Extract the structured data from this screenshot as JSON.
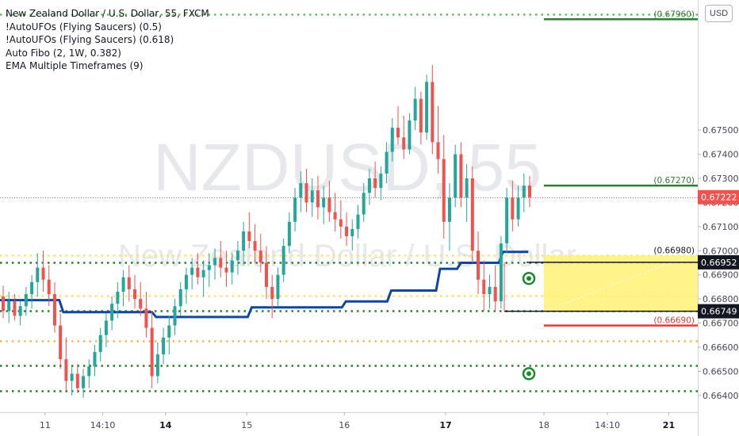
{
  "chart_data": {
    "type": "candlestick",
    "symbol_title": "New Zealand Dollar / U.S. Dollar, 55, FXCM",
    "indicators": [
      "!AutoUFOs (Flying Saucers) (0.5)",
      "!AutoUFOs (Flying Saucers) (0.618)",
      "Auto Fibo (2, 1W, 0.382)",
      "EMA Multiple Timeframes (9)"
    ],
    "watermark_symbol": "NZDUSD, 55",
    "watermark_name": "New Zealand Dollar / U.S. Dollar",
    "currency": "USD",
    "y_axis": {
      "min": 0.6635,
      "max": 0.6802,
      "ticks": [
        "0.67500",
        "0.67400",
        "0.67300",
        "0.67200",
        "0.67100",
        "0.67000",
        "0.66900",
        "0.66800",
        "0.66700",
        "0.66600",
        "0.66500",
        "0.66400"
      ]
    },
    "x_axis": {
      "ticks": [
        {
          "label": "11",
          "bold": false,
          "x": 0.061
        },
        {
          "label": "14:10",
          "bold": false,
          "x": 0.139
        },
        {
          "label": "14",
          "bold": true,
          "x": 0.224
        },
        {
          "label": "15",
          "bold": false,
          "x": 0.334
        },
        {
          "label": "16",
          "bold": false,
          "x": 0.466
        },
        {
          "label": "17",
          "bold": true,
          "x": 0.603
        },
        {
          "label": "18",
          "bold": false,
          "x": 0.736
        },
        {
          "label": "14:10",
          "bold": false,
          "x": 0.822
        },
        {
          "label": "21",
          "bold": true,
          "x": 0.905
        }
      ]
    },
    "price_labels": [
      {
        "value": "0.67960",
        "price": 0.6796,
        "style": "green-text"
      },
      {
        "value": "0.67270",
        "price": 0.6727,
        "style": "green-text"
      },
      {
        "value": "0.67222",
        "price": 0.67222,
        "style": "red-badge"
      },
      {
        "value": "0.66980",
        "price": 0.6698,
        "style": "black-text"
      },
      {
        "value": "0.66952",
        "price": 0.66952,
        "style": "black-badge"
      },
      {
        "value": "0.66749",
        "price": 0.66749,
        "style": "black-badge"
      },
      {
        "value": "0.66690",
        "price": 0.6669,
        "style": "red-text"
      }
    ],
    "horizontal_levels": [
      {
        "price": 0.6798,
        "color": "#66bb6a",
        "style": "dotted"
      },
      {
        "price": 0.6698,
        "color": "#ffe066",
        "style": "dotted"
      },
      {
        "price": 0.66815,
        "color": "#ffe066",
        "style": "dotted"
      },
      {
        "price": 0.6695,
        "color": "#2e7d32",
        "style": "dotted"
      },
      {
        "price": 0.6675,
        "color": "#2e7d32",
        "style": "dotted"
      },
      {
        "price": 0.66525,
        "color": "#2e7d32",
        "style": "dotted"
      },
      {
        "price": 0.6642,
        "color": "#2e7d32",
        "style": "dotted"
      },
      {
        "price": 0.66625,
        "color": "#ffb74d",
        "style": "dotted"
      },
      {
        "price": 0.67222,
        "color": "#ef5350",
        "style": "dotted-thin"
      }
    ],
    "target_lines": [
      {
        "price": 0.6796,
        "color": "#2e7d32"
      },
      {
        "price": 0.6727,
        "color": "#2e7d32"
      },
      {
        "price": 0.6669,
        "color": "#e53935"
      }
    ],
    "ufo_zone": {
      "top": 0.6698,
      "bottom": 0.66749,
      "color": "#fff176"
    },
    "ema_steps": [
      {
        "from": 0.0,
        "price": 0.66795
      },
      {
        "from": 0.085,
        "price": 0.66745
      },
      {
        "from": 0.218,
        "price": 0.66725
      },
      {
        "from": 0.355,
        "price": 0.66765
      },
      {
        "from": 0.49,
        "price": 0.6679
      },
      {
        "from": 0.555,
        "price": 0.66835
      },
      {
        "from": 0.625,
        "price": 0.66925
      },
      {
        "from": 0.655,
        "price": 0.6695
      },
      {
        "from": 0.715,
        "price": 0.66995
      }
    ],
    "candles": [
      [
        0.6681,
        0.66855,
        0.6672,
        0.6675
      ],
      [
        0.6675,
        0.6683,
        0.667,
        0.6679
      ],
      [
        0.6679,
        0.6682,
        0.6671,
        0.6673
      ],
      [
        0.6673,
        0.6679,
        0.6669,
        0.6677
      ],
      [
        0.6677,
        0.6685,
        0.6673,
        0.6682
      ],
      [
        0.6682,
        0.669,
        0.6676,
        0.6687
      ],
      [
        0.6687,
        0.6699,
        0.6681,
        0.6693
      ],
      [
        0.6693,
        0.67,
        0.6683,
        0.6688
      ],
      [
        0.6688,
        0.6694,
        0.6677,
        0.6682
      ],
      [
        0.6682,
        0.6687,
        0.6666,
        0.6669
      ],
      [
        0.6669,
        0.6674,
        0.6651,
        0.6655
      ],
      [
        0.6655,
        0.6664,
        0.6642,
        0.6646
      ],
      [
        0.6646,
        0.6652,
        0.664,
        0.6649
      ],
      [
        0.6649,
        0.6653,
        0.6641,
        0.6643
      ],
      [
        0.6643,
        0.6651,
        0.6639,
        0.6648
      ],
      [
        0.6648,
        0.6655,
        0.6643,
        0.6652
      ],
      [
        0.6652,
        0.6661,
        0.6648,
        0.6658
      ],
      [
        0.6658,
        0.6668,
        0.6654,
        0.6665
      ],
      [
        0.6665,
        0.6674,
        0.666,
        0.6671
      ],
      [
        0.6671,
        0.6681,
        0.6667,
        0.6678
      ],
      [
        0.6678,
        0.6687,
        0.6672,
        0.6683
      ],
      [
        0.6683,
        0.6692,
        0.6677,
        0.6689
      ],
      [
        0.6689,
        0.6694,
        0.6679,
        0.6684
      ],
      [
        0.6684,
        0.669,
        0.6676,
        0.668
      ],
      [
        0.668,
        0.6687,
        0.6673,
        0.6676
      ],
      [
        0.6676,
        0.6683,
        0.6664,
        0.6668
      ],
      [
        0.6668,
        0.6675,
        0.6643,
        0.6648
      ],
      [
        0.6648,
        0.6662,
        0.6645,
        0.6657
      ],
      [
        0.6657,
        0.6668,
        0.6653,
        0.6664
      ],
      [
        0.6664,
        0.6673,
        0.6657,
        0.6669
      ],
      [
        0.6669,
        0.668,
        0.6665,
        0.6677
      ],
      [
        0.6677,
        0.6687,
        0.6673,
        0.6684
      ],
      [
        0.6684,
        0.6693,
        0.6678,
        0.669
      ],
      [
        0.669,
        0.6697,
        0.6684,
        0.6693
      ],
      [
        0.6693,
        0.6699,
        0.6686,
        0.6689
      ],
      [
        0.6689,
        0.6696,
        0.6681,
        0.6692
      ],
      [
        0.6692,
        0.6699,
        0.6685,
        0.6694
      ],
      [
        0.6694,
        0.6701,
        0.6688,
        0.6697
      ],
      [
        0.6697,
        0.6704,
        0.6689,
        0.6693
      ],
      [
        0.6693,
        0.67,
        0.6685,
        0.6691
      ],
      [
        0.6691,
        0.6699,
        0.6686,
        0.6696
      ],
      [
        0.6696,
        0.6704,
        0.669,
        0.67
      ],
      [
        0.67,
        0.6712,
        0.6694,
        0.6708
      ],
      [
        0.6708,
        0.6716,
        0.6701,
        0.6704
      ],
      [
        0.6704,
        0.6711,
        0.6695,
        0.67
      ],
      [
        0.67,
        0.6707,
        0.6691,
        0.6695
      ],
      [
        0.6695,
        0.6702,
        0.668,
        0.6685
      ],
      [
        0.6685,
        0.669,
        0.6672,
        0.668
      ],
      [
        0.668,
        0.6693,
        0.6677,
        0.669
      ],
      [
        0.669,
        0.6705,
        0.6687,
        0.6702
      ],
      [
        0.6702,
        0.6716,
        0.6699,
        0.6712
      ],
      [
        0.6712,
        0.6726,
        0.6708,
        0.6722
      ],
      [
        0.6722,
        0.6733,
        0.6716,
        0.6728
      ],
      [
        0.6728,
        0.6734,
        0.6716,
        0.672
      ],
      [
        0.672,
        0.673,
        0.6714,
        0.6725
      ],
      [
        0.6725,
        0.6731,
        0.6713,
        0.6718
      ],
      [
        0.6718,
        0.6727,
        0.6711,
        0.6722
      ],
      [
        0.6722,
        0.6729,
        0.6712,
        0.6716
      ],
      [
        0.6716,
        0.6724,
        0.6708,
        0.6713
      ],
      [
        0.6713,
        0.6721,
        0.6705,
        0.671
      ],
      [
        0.671,
        0.6716,
        0.6702,
        0.6706
      ],
      [
        0.6706,
        0.6713,
        0.67,
        0.6709
      ],
      [
        0.6709,
        0.6719,
        0.6705,
        0.6715
      ],
      [
        0.6715,
        0.6728,
        0.6712,
        0.6724
      ],
      [
        0.6724,
        0.6734,
        0.6719,
        0.673
      ],
      [
        0.673,
        0.6737,
        0.6722,
        0.6726
      ],
      [
        0.6726,
        0.6735,
        0.6721,
        0.6732
      ],
      [
        0.6732,
        0.6745,
        0.6728,
        0.6741
      ],
      [
        0.6741,
        0.6755,
        0.6737,
        0.6751
      ],
      [
        0.6751,
        0.676,
        0.6744,
        0.6747
      ],
      [
        0.6747,
        0.6756,
        0.6738,
        0.6742
      ],
      [
        0.6742,
        0.6757,
        0.674,
        0.6754
      ],
      [
        0.6754,
        0.6768,
        0.675,
        0.6763
      ],
      [
        0.6763,
        0.6766,
        0.6744,
        0.6749
      ],
      [
        0.6749,
        0.6773,
        0.6746,
        0.677
      ],
      [
        0.677,
        0.6777,
        0.674,
        0.6745
      ],
      [
        0.6745,
        0.676,
        0.6732,
        0.6738
      ],
      [
        0.6738,
        0.6748,
        0.6705,
        0.6712
      ],
      [
        0.6712,
        0.6728,
        0.67,
        0.6722
      ],
      [
        0.6722,
        0.6744,
        0.6718,
        0.674
      ],
      [
        0.674,
        0.6745,
        0.6718,
        0.6722
      ],
      [
        0.6722,
        0.6736,
        0.6712,
        0.673
      ],
      [
        0.673,
        0.6735,
        0.6695,
        0.67
      ],
      [
        0.67,
        0.6708,
        0.6682,
        0.6688
      ],
      [
        0.6688,
        0.6696,
        0.6675,
        0.6682
      ],
      [
        0.6682,
        0.669,
        0.6676,
        0.6685
      ],
      [
        0.6685,
        0.6694,
        0.6675,
        0.6679
      ],
      [
        0.6679,
        0.6706,
        0.6676,
        0.6703
      ],
      [
        0.6703,
        0.6726,
        0.6699,
        0.6722
      ],
      [
        0.6722,
        0.6729,
        0.6708,
        0.6713
      ],
      [
        0.6713,
        0.6727,
        0.671,
        0.6722
      ],
      [
        0.6722,
        0.6732,
        0.6716,
        0.6727
      ],
      [
        0.6727,
        0.6731,
        0.6718,
        0.67222
      ]
    ],
    "markers": [
      {
        "price": 0.66885
      },
      {
        "price": 0.6649
      }
    ]
  }
}
